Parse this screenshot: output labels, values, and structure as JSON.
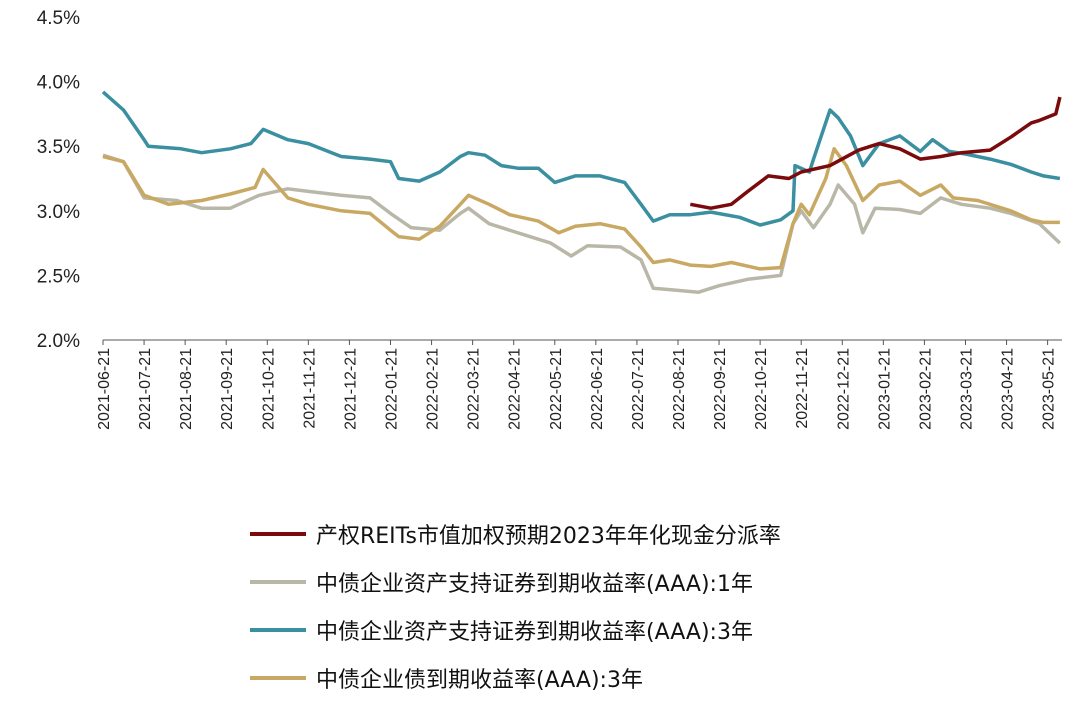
{
  "chart_data": {
    "type": "line",
    "title": "",
    "x_unit": "months since 2021-06-21",
    "xlim": [
      0,
      23.35
    ],
    "ylim": [
      2.0,
      4.5
    ],
    "y_ticks": [
      "2.0%",
      "2.5%",
      "3.0%",
      "3.5%",
      "4.0%",
      "4.5%"
    ],
    "y_tick_values": [
      2.0,
      2.5,
      3.0,
      3.5,
      4.0,
      4.5
    ],
    "x_ticks": [
      "2021-06-21",
      "2021-07-21",
      "2021-08-21",
      "2021-09-21",
      "2021-10-21",
      "2021-11-21",
      "2021-12-21",
      "2022-01-21",
      "2022-02-21",
      "2022-03-21",
      "2022-04-21",
      "2022-05-21",
      "2022-06-21",
      "2022-07-21",
      "2022-08-21",
      "2022-09-21",
      "2022-10-21",
      "2022-11-21",
      "2022-12-21",
      "2023-01-21",
      "2023-02-21",
      "2023-03-21",
      "2023-04-21",
      "2023-05-21"
    ],
    "grid": false,
    "legend_position": "bottom",
    "series": [
      {
        "name": "产权REITs市值加权预期2023年年化现金分派率",
        "color": "#7a0a0c",
        "points": [
          [
            14.3,
            3.05
          ],
          [
            14.8,
            3.02
          ],
          [
            15.3,
            3.05
          ],
          [
            15.7,
            3.15
          ],
          [
            16.2,
            3.27
          ],
          [
            16.7,
            3.25
          ],
          [
            17.0,
            3.3
          ],
          [
            17.7,
            3.35
          ],
          [
            18.4,
            3.47
          ],
          [
            18.9,
            3.52
          ],
          [
            19.4,
            3.48
          ],
          [
            19.9,
            3.4
          ],
          [
            20.4,
            3.42
          ],
          [
            20.9,
            3.45
          ],
          [
            21.6,
            3.47
          ],
          [
            22.1,
            3.57
          ],
          [
            22.6,
            3.68
          ],
          [
            22.8,
            3.7
          ],
          [
            23.2,
            3.75
          ],
          [
            23.3,
            3.88
          ]
        ]
      },
      {
        "name": "中债企业资产支持证券到期收益率(AAA):1年",
        "color": "#b9b8a8",
        "points": [
          [
            0,
            3.43
          ],
          [
            0.5,
            3.38
          ],
          [
            1.0,
            3.1
          ],
          [
            1.8,
            3.08
          ],
          [
            2.4,
            3.02
          ],
          [
            3.1,
            3.02
          ],
          [
            3.8,
            3.12
          ],
          [
            4.5,
            3.17
          ],
          [
            5.0,
            3.15
          ],
          [
            5.8,
            3.12
          ],
          [
            6.5,
            3.1
          ],
          [
            7.0,
            2.98
          ],
          [
            7.5,
            2.87
          ],
          [
            8.2,
            2.85
          ],
          [
            8.7,
            2.98
          ],
          [
            8.9,
            3.02
          ],
          [
            9.4,
            2.9
          ],
          [
            10.1,
            2.83
          ],
          [
            10.9,
            2.75
          ],
          [
            11.4,
            2.65
          ],
          [
            11.8,
            2.73
          ],
          [
            12.6,
            2.72
          ],
          [
            13.1,
            2.62
          ],
          [
            13.4,
            2.4
          ],
          [
            13.8,
            2.39
          ],
          [
            14.5,
            2.37
          ],
          [
            15.0,
            2.42
          ],
          [
            15.7,
            2.47
          ],
          [
            16.5,
            2.5
          ],
          [
            16.8,
            2.9
          ],
          [
            17.0,
            3.0
          ],
          [
            17.3,
            2.87
          ],
          [
            17.7,
            3.05
          ],
          [
            17.9,
            3.2
          ],
          [
            18.3,
            3.05
          ],
          [
            18.5,
            2.83
          ],
          [
            18.8,
            3.02
          ],
          [
            19.4,
            3.01
          ],
          [
            19.9,
            2.98
          ],
          [
            20.4,
            3.1
          ],
          [
            20.9,
            3.05
          ],
          [
            21.6,
            3.02
          ],
          [
            22.1,
            2.98
          ],
          [
            22.8,
            2.9
          ],
          [
            23.3,
            2.75
          ]
        ]
      },
      {
        "name": "中债企业资产支持证券到期收益率(AAA):3年",
        "color": "#3a8fa0",
        "points": [
          [
            0,
            3.92
          ],
          [
            0.5,
            3.78
          ],
          [
            1.0,
            3.55
          ],
          [
            1.1,
            3.5
          ],
          [
            1.9,
            3.48
          ],
          [
            2.4,
            3.45
          ],
          [
            3.1,
            3.48
          ],
          [
            3.6,
            3.52
          ],
          [
            3.9,
            3.63
          ],
          [
            4.5,
            3.55
          ],
          [
            5.0,
            3.52
          ],
          [
            5.8,
            3.42
          ],
          [
            6.5,
            3.4
          ],
          [
            7.0,
            3.38
          ],
          [
            7.2,
            3.25
          ],
          [
            7.7,
            3.23
          ],
          [
            8.2,
            3.3
          ],
          [
            8.7,
            3.42
          ],
          [
            8.9,
            3.45
          ],
          [
            9.3,
            3.43
          ],
          [
            9.7,
            3.35
          ],
          [
            10.1,
            3.33
          ],
          [
            10.6,
            3.33
          ],
          [
            11.0,
            3.22
          ],
          [
            11.5,
            3.27
          ],
          [
            12.1,
            3.27
          ],
          [
            12.7,
            3.22
          ],
          [
            13.1,
            3.05
          ],
          [
            13.4,
            2.92
          ],
          [
            13.8,
            2.97
          ],
          [
            14.3,
            2.97
          ],
          [
            14.8,
            2.99
          ],
          [
            15.5,
            2.95
          ],
          [
            16.0,
            2.89
          ],
          [
            16.5,
            2.93
          ],
          [
            16.8,
            3.0
          ],
          [
            16.85,
            3.35
          ],
          [
            17.2,
            3.3
          ],
          [
            17.3,
            3.4
          ],
          [
            17.7,
            3.78
          ],
          [
            17.9,
            3.72
          ],
          [
            18.2,
            3.58
          ],
          [
            18.5,
            3.35
          ],
          [
            18.9,
            3.52
          ],
          [
            19.4,
            3.58
          ],
          [
            19.9,
            3.46
          ],
          [
            20.2,
            3.55
          ],
          [
            20.6,
            3.46
          ],
          [
            21.0,
            3.44
          ],
          [
            21.6,
            3.4
          ],
          [
            22.1,
            3.36
          ],
          [
            22.6,
            3.3
          ],
          [
            22.9,
            3.27
          ],
          [
            23.3,
            3.25
          ]
        ]
      },
      {
        "name": "中债企业债到期收益率(AAA):3年",
        "color": "#c8a862",
        "points": [
          [
            0,
            3.42
          ],
          [
            0.5,
            3.38
          ],
          [
            1.0,
            3.12
          ],
          [
            1.6,
            3.05
          ],
          [
            2.4,
            3.08
          ],
          [
            3.1,
            3.13
          ],
          [
            3.7,
            3.18
          ],
          [
            3.9,
            3.32
          ],
          [
            4.5,
            3.1
          ],
          [
            5.0,
            3.05
          ],
          [
            5.8,
            3.0
          ],
          [
            6.5,
            2.98
          ],
          [
            7.0,
            2.85
          ],
          [
            7.2,
            2.8
          ],
          [
            7.7,
            2.78
          ],
          [
            8.2,
            2.88
          ],
          [
            8.7,
            3.05
          ],
          [
            8.9,
            3.12
          ],
          [
            9.4,
            3.05
          ],
          [
            9.9,
            2.97
          ],
          [
            10.6,
            2.92
          ],
          [
            11.1,
            2.83
          ],
          [
            11.5,
            2.88
          ],
          [
            12.1,
            2.9
          ],
          [
            12.7,
            2.86
          ],
          [
            13.1,
            2.72
          ],
          [
            13.4,
            2.6
          ],
          [
            13.8,
            2.62
          ],
          [
            14.3,
            2.58
          ],
          [
            14.8,
            2.57
          ],
          [
            15.3,
            2.6
          ],
          [
            16.0,
            2.55
          ],
          [
            16.5,
            2.56
          ],
          [
            16.8,
            2.9
          ],
          [
            17.0,
            3.05
          ],
          [
            17.2,
            2.97
          ],
          [
            17.6,
            3.25
          ],
          [
            17.8,
            3.48
          ],
          [
            18.1,
            3.35
          ],
          [
            18.5,
            3.08
          ],
          [
            18.9,
            3.2
          ],
          [
            19.4,
            3.23
          ],
          [
            19.9,
            3.12
          ],
          [
            20.4,
            3.2
          ],
          [
            20.7,
            3.1
          ],
          [
            21.3,
            3.08
          ],
          [
            22.1,
            3.0
          ],
          [
            22.6,
            2.93
          ],
          [
            22.9,
            2.91
          ],
          [
            23.3,
            2.91
          ]
        ]
      }
    ]
  }
}
